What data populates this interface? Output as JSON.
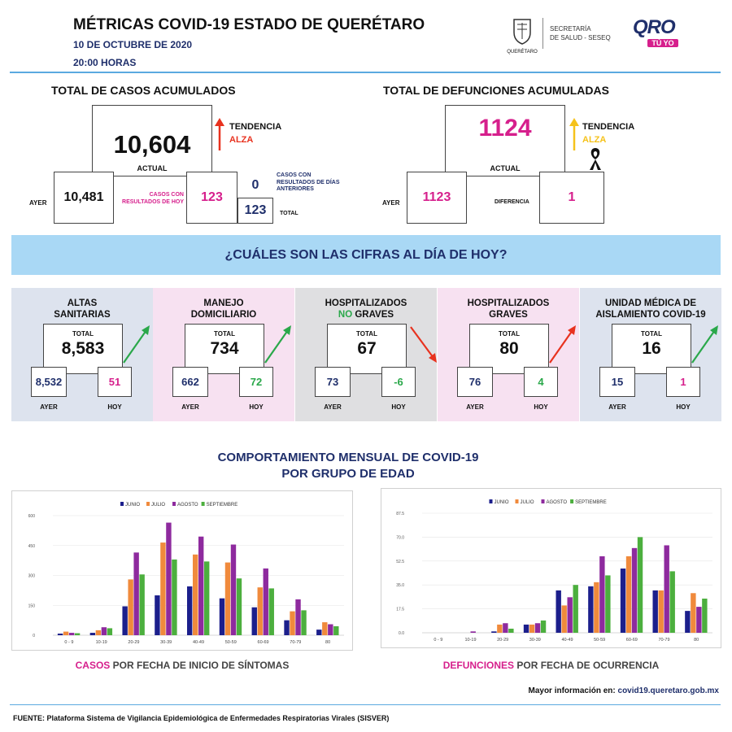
{
  "header": {
    "title": "MÉTRICAS COVID-19 ESTADO DE QUERÉTARO",
    "date": "10 DE OCTUBRE DE 2020",
    "time": "20:00 HORAS",
    "seal_text": "QUERÉTARO",
    "secretaria_line1": "SECRETARÍA",
    "secretaria_line2": "DE SALUD - SESEQ",
    "logo_main": "QRO",
    "logo_sub": "TÚ YO"
  },
  "cases": {
    "title": "TOTAL DE CASOS ACUMULADOS",
    "actual_value": "10,604",
    "actual_label": "ACTUAL",
    "trend_label": "TENDENCIA",
    "trend_value": "ALZA",
    "ayer_label": "AYER",
    "ayer_value": "10,481",
    "today_label": "CASOS CON RESULTADOS DE HOY",
    "today_value": "123",
    "previous_value": "0",
    "previous_label": "CASOS CON RESULTADOS DE DÍAS ANTERIORES",
    "total_value": "123",
    "total_label": "TOTAL"
  },
  "deaths": {
    "title": "TOTAL DE DEFUNCIONES ACUMULADAS",
    "actual_value": "1124",
    "actual_label": "ACTUAL",
    "trend_label": "TENDENCIA",
    "trend_value": "ALZA",
    "ayer_label": "AYER",
    "ayer_value": "1123",
    "diff_label": "DIFERENCIA",
    "diff_value": "1"
  },
  "banner": {
    "question": "¿CUÁLES SON LAS CIFRAS AL DÍA DE HOY?"
  },
  "panels": [
    {
      "title_html_1": "ALTAS",
      "title_html_2": "SANITARIAS",
      "total_label": "TOTAL",
      "total": "8,583",
      "ayer": "8,532",
      "hoy": "51",
      "ayer_label": "AYER",
      "hoy_label": "HOY",
      "trend": "up",
      "hoy_color": "#d61f8c",
      "bg": "#dde3ee"
    },
    {
      "title_html_1": "MANEJO",
      "title_html_2": "DOMICILIARIO",
      "total_label": "TOTAL",
      "total": "734",
      "ayer": "662",
      "hoy": "72",
      "ayer_label": "AYER",
      "hoy_label": "HOY",
      "trend": "up",
      "hoy_color": "#2aa84a",
      "bg": "#f7e1f1"
    },
    {
      "title_html_1": "HOSPITALIZADOS",
      "title_no": "NO",
      "title_html_2": " GRAVES",
      "total_label": "TOTAL",
      "total": "67",
      "ayer": "73",
      "hoy": "-6",
      "ayer_label": "AYER",
      "hoy_label": "HOY",
      "trend": "down",
      "hoy_color": "#2aa84a",
      "bg": "#dfdfe1"
    },
    {
      "title_html_1": "HOSPITALIZADOS",
      "title_html_2": "GRAVES",
      "total_label": "TOTAL",
      "total": "80",
      "ayer": "76",
      "hoy": "4",
      "ayer_label": "AYER",
      "hoy_label": "HOY",
      "trend": "up-red",
      "hoy_color": "#2aa84a",
      "bg": "#f7e1f1"
    },
    {
      "title_html_1": "UNIDAD MÉDICA DE",
      "title_html_2": "AISLAMIENTO COVID-19",
      "total_label": "TOTAL",
      "total": "16",
      "ayer": "15",
      "hoy": "1",
      "ayer_label": "AYER",
      "hoy_label": "HOY",
      "trend": "up",
      "hoy_color": "#d61f8c",
      "bg": "#dde3ee"
    }
  ],
  "section": {
    "title_line1": "COMPORTAMIENTO MENSUAL DE COVID-19",
    "title_line2": "POR GRUPO DE EDAD"
  },
  "captions": {
    "cases_highlight": "CASOS",
    "cases_rest": " POR FECHA DE INICIO DE SÍNTOMAS",
    "deaths_highlight": "DEFUNCIONES",
    "deaths_rest": " POR FECHA DE OCURRENCIA"
  },
  "footer": {
    "more_info_label": "Mayor información en:",
    "more_info_url": "covid19.queretaro.gob.mx",
    "source": "FUENTE: Plataforma Sistema  de Vigilancia Epidemiológica de Enfermedades Respiratorias Virales (SISVER)"
  },
  "colors": {
    "navy": "#1f2f6b",
    "pink": "#d61f8c",
    "red": "#e8321f",
    "yellow": "#f5c21b",
    "green": "#2aa84a",
    "banner": "#a9d8f5"
  },
  "chart_data": [
    {
      "type": "bar",
      "categories": [
        "0 - 9",
        "10-19",
        "20-29",
        "30-39",
        "40-49",
        "50-59",
        "60-69",
        "70-79",
        "80"
      ],
      "ylim": [
        0,
        600
      ],
      "yticks": [
        "0",
        "150",
        "300",
        "450",
        "600"
      ],
      "series": [
        {
          "name": "JUNIO",
          "color": "#1c1f8c",
          "values": [
            8,
            12,
            145,
            200,
            245,
            185,
            140,
            75,
            28
          ]
        },
        {
          "name": "JULIO",
          "color": "#f08a3c",
          "values": [
            18,
            25,
            280,
            465,
            405,
            365,
            240,
            120,
            65
          ]
        },
        {
          "name": "AGOSTO",
          "color": "#8e2a9e",
          "values": [
            12,
            40,
            415,
            565,
            495,
            455,
            335,
            180,
            55
          ]
        },
        {
          "name": "SEPTIEMBRE",
          "color": "#4caf3e",
          "values": [
            10,
            35,
            305,
            380,
            370,
            285,
            235,
            125,
            45
          ]
        }
      ]
    },
    {
      "type": "bar",
      "categories": [
        "0 - 9",
        "10-19",
        "20-29",
        "30-39",
        "40-49",
        "50-59",
        "60-69",
        "70-79",
        "80"
      ],
      "ylim": [
        0,
        87.5
      ],
      "yticks": [
        "0.0",
        "17.5",
        "35.0",
        "52.5",
        "70.0",
        "87.5"
      ],
      "series": [
        {
          "name": "JUNIO",
          "color": "#1c1f8c",
          "values": [
            0,
            0,
            1,
            6,
            31,
            34,
            47,
            31,
            16
          ]
        },
        {
          "name": "JULIO",
          "color": "#f08a3c",
          "values": [
            0,
            0,
            6,
            6,
            20,
            37,
            56,
            31,
            29
          ]
        },
        {
          "name": "AGOSTO",
          "color": "#8e2a9e",
          "values": [
            0,
            1,
            7,
            7,
            26,
            56,
            62,
            64,
            19
          ]
        },
        {
          "name": "SEPTIEMBRE",
          "color": "#4caf3e",
          "values": [
            0,
            0,
            3,
            9,
            35,
            42,
            70,
            45,
            25
          ]
        }
      ]
    }
  ]
}
